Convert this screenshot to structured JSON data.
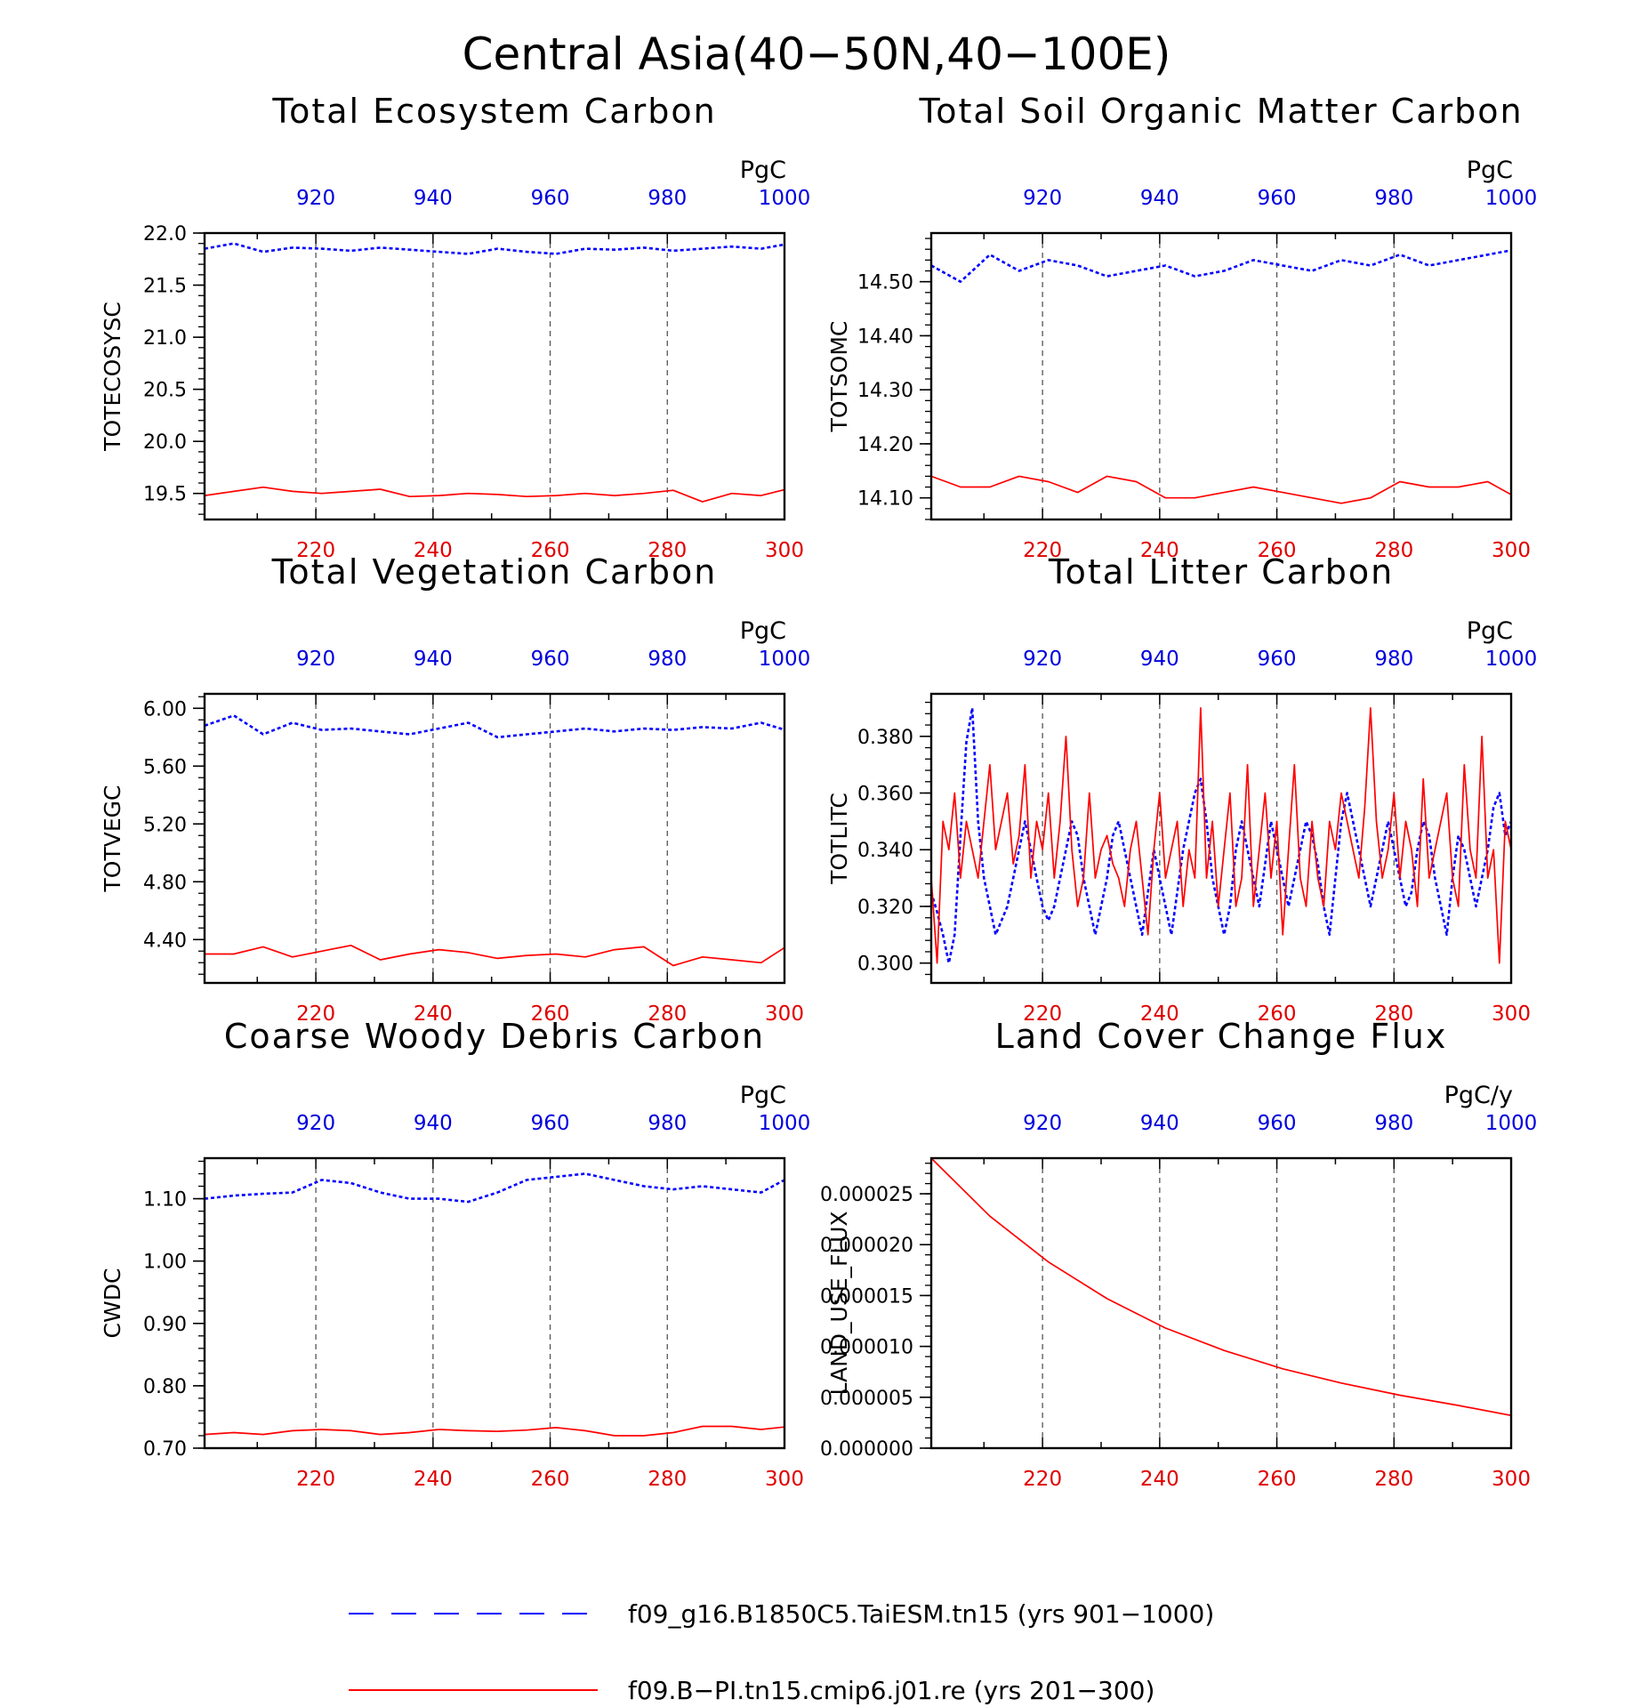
{
  "figure": {
    "title": "Central Asia(40−50N,40−100E)",
    "colors": {
      "case1": "#0000ff",
      "case2": "#ff0000",
      "bottom_ticks": "#e00000",
      "top_ticks": "#0000dd"
    }
  },
  "legend": [
    {
      "label": "f09_g16.B1850C5.TaiESM.tn15 (yrs 901−1000)",
      "color": "#0000ff",
      "style": "dashed"
    },
    {
      "label": "f09.B−PI.tn15.cmip6.j01.re (yrs 201−300)",
      "color": "#ff0000",
      "style": "solid"
    }
  ],
  "chart_data": [
    {
      "type": "line",
      "title": "Total Ecosystem Carbon",
      "ylabel": "TOTECOSYSC",
      "unit": "PgC",
      "x_bottom": {
        "range": [
          201,
          300
        ],
        "ticks": [
          220,
          240,
          260,
          280,
          300
        ]
      },
      "x_top": {
        "range": [
          901,
          1000
        ],
        "ticks": [
          920,
          940,
          960,
          980,
          1000
        ]
      },
      "ylim": [
        19.25,
        22.0
      ],
      "yticks": [
        19.5,
        20.0,
        20.5,
        21.0,
        21.5,
        22.0
      ],
      "ytick_decimals": 1,
      "yminor": 0.1,
      "series": [
        {
          "name": "f09_g16.B1850C5.TaiESM.tn15 (yrs 901−1000)",
          "axis": "top",
          "style": "dashed",
          "x0": 901,
          "step": 5,
          "values": [
            21.85,
            21.9,
            21.82,
            21.86,
            21.85,
            21.83,
            21.86,
            21.84,
            21.82,
            21.8,
            21.85,
            21.82,
            21.8,
            21.85,
            21.84,
            21.86,
            21.83,
            21.85,
            21.87,
            21.85,
            21.9
          ]
        },
        {
          "name": "f09.B−PI.tn15.cmip6.j01.re (yrs 201−300)",
          "axis": "bottom",
          "style": "solid",
          "x0": 201,
          "step": 5,
          "values": [
            19.48,
            19.52,
            19.56,
            19.52,
            19.5,
            19.52,
            19.54,
            19.47,
            19.48,
            19.5,
            19.49,
            19.47,
            19.48,
            19.5,
            19.48,
            19.5,
            19.53,
            19.42,
            19.5,
            19.48,
            19.55
          ]
        }
      ]
    },
    {
      "type": "line",
      "title": "Total Soil Organic Matter Carbon",
      "ylabel": "TOTSOMC",
      "unit": "PgC",
      "x_bottom": {
        "range": [
          201,
          300
        ],
        "ticks": [
          220,
          240,
          260,
          280,
          300
        ]
      },
      "x_top": {
        "range": [
          901,
          1000
        ],
        "ticks": [
          920,
          940,
          960,
          980,
          1000
        ]
      },
      "ylim": [
        14.06,
        14.59
      ],
      "yticks": [
        14.1,
        14.2,
        14.3,
        14.4,
        14.5
      ],
      "ytick_decimals": 2,
      "yminor": 0.02,
      "series": [
        {
          "name": "f09_g16.B1850C5.TaiESM.tn15 (yrs 901−1000)",
          "axis": "top",
          "style": "dashed",
          "x0": 901,
          "step": 5,
          "values": [
            14.53,
            14.5,
            14.55,
            14.52,
            14.54,
            14.53,
            14.51,
            14.52,
            14.53,
            14.51,
            14.52,
            14.54,
            14.53,
            14.52,
            14.54,
            14.53,
            14.55,
            14.53,
            14.54,
            14.55,
            14.56
          ]
        },
        {
          "name": "f09.B−PI.tn15.cmip6.j01.re (yrs 201−300)",
          "axis": "bottom",
          "style": "solid",
          "x0": 201,
          "step": 5,
          "values": [
            14.14,
            14.12,
            14.12,
            14.14,
            14.13,
            14.11,
            14.14,
            14.13,
            14.1,
            14.1,
            14.11,
            14.12,
            14.11,
            14.1,
            14.09,
            14.1,
            14.13,
            14.12,
            14.12,
            14.13,
            14.1
          ]
        }
      ]
    },
    {
      "type": "line",
      "title": "Total Vegetation Carbon",
      "ylabel": "TOTVEGC",
      "unit": "PgC",
      "x_bottom": {
        "range": [
          201,
          300
        ],
        "ticks": [
          220,
          240,
          260,
          280,
          300
        ]
      },
      "x_top": {
        "range": [
          901,
          1000
        ],
        "ticks": [
          920,
          940,
          960,
          980,
          1000
        ]
      },
      "ylim": [
        4.1,
        6.1
      ],
      "yticks": [
        4.4,
        4.8,
        5.2,
        5.6,
        6.0
      ],
      "ytick_decimals": 2,
      "yminor": 0.08,
      "series": [
        {
          "name": "f09_g16.B1850C5.TaiESM.tn15 (yrs 901−1000)",
          "axis": "top",
          "style": "dashed",
          "x0": 901,
          "step": 5,
          "values": [
            5.88,
            5.95,
            5.82,
            5.9,
            5.85,
            5.86,
            5.84,
            5.82,
            5.86,
            5.9,
            5.8,
            5.82,
            5.84,
            5.86,
            5.84,
            5.86,
            5.85,
            5.87,
            5.86,
            5.9,
            5.84
          ]
        },
        {
          "name": "f09.B−PI.tn15.cmip6.j01.re (yrs 201−300)",
          "axis": "bottom",
          "style": "solid",
          "x0": 201,
          "step": 5,
          "values": [
            4.3,
            4.3,
            4.35,
            4.28,
            4.32,
            4.36,
            4.26,
            4.3,
            4.33,
            4.31,
            4.27,
            4.29,
            4.3,
            4.28,
            4.33,
            4.35,
            4.22,
            4.28,
            4.26,
            4.24,
            4.37
          ]
        }
      ]
    },
    {
      "type": "line",
      "title": "Total Litter Carbon",
      "ylabel": "TOTLITC",
      "unit": "PgC",
      "x_bottom": {
        "range": [
          201,
          300
        ],
        "ticks": [
          220,
          240,
          260,
          280,
          300
        ]
      },
      "x_top": {
        "range": [
          901,
          1000
        ],
        "ticks": [
          920,
          940,
          960,
          980,
          1000
        ]
      },
      "ylim": [
        0.293,
        0.395
      ],
      "yticks": [
        0.3,
        0.32,
        0.34,
        0.36,
        0.38
      ],
      "ytick_decimals": 3,
      "yminor": 0.004,
      "series": [
        {
          "name": "f09_g16.B1850C5.TaiESM.tn15 (yrs 901−1000)",
          "axis": "top",
          "style": "dashed",
          "x0": 901,
          "step": 1,
          "values": [
            0.325,
            0.318,
            0.31,
            0.3,
            0.31,
            0.345,
            0.378,
            0.39,
            0.35,
            0.33,
            0.32,
            0.31,
            0.315,
            0.32,
            0.33,
            0.34,
            0.35,
            0.34,
            0.33,
            0.32,
            0.315,
            0.32,
            0.33,
            0.34,
            0.35,
            0.345,
            0.33,
            0.32,
            0.31,
            0.32,
            0.33,
            0.345,
            0.35,
            0.34,
            0.33,
            0.32,
            0.31,
            0.325,
            0.34,
            0.33,
            0.32,
            0.31,
            0.325,
            0.34,
            0.35,
            0.36,
            0.365,
            0.35,
            0.33,
            0.32,
            0.31,
            0.32,
            0.34,
            0.35,
            0.34,
            0.33,
            0.32,
            0.335,
            0.35,
            0.34,
            0.33,
            0.32,
            0.33,
            0.34,
            0.35,
            0.345,
            0.335,
            0.32,
            0.31,
            0.33,
            0.35,
            0.36,
            0.35,
            0.34,
            0.33,
            0.32,
            0.33,
            0.34,
            0.35,
            0.34,
            0.33,
            0.32,
            0.325,
            0.34,
            0.35,
            0.345,
            0.33,
            0.32,
            0.31,
            0.33,
            0.345,
            0.34,
            0.33,
            0.32,
            0.33,
            0.34,
            0.355,
            0.36,
            0.345,
            0.35
          ]
        },
        {
          "name": "f09.B−PI.tn15.cmip6.j01.re (yrs 201−300)",
          "axis": "bottom",
          "style": "solid",
          "x0": 201,
          "step": 1,
          "values": [
            0.33,
            0.3,
            0.35,
            0.34,
            0.36,
            0.33,
            0.35,
            0.34,
            0.33,
            0.35,
            0.37,
            0.34,
            0.35,
            0.36,
            0.335,
            0.345,
            0.37,
            0.33,
            0.35,
            0.34,
            0.36,
            0.33,
            0.35,
            0.38,
            0.34,
            0.32,
            0.33,
            0.36,
            0.33,
            0.34,
            0.345,
            0.335,
            0.33,
            0.32,
            0.34,
            0.35,
            0.33,
            0.31,
            0.34,
            0.36,
            0.33,
            0.34,
            0.35,
            0.32,
            0.34,
            0.33,
            0.39,
            0.33,
            0.35,
            0.32,
            0.34,
            0.36,
            0.32,
            0.33,
            0.37,
            0.32,
            0.34,
            0.36,
            0.33,
            0.35,
            0.31,
            0.34,
            0.37,
            0.33,
            0.32,
            0.35,
            0.33,
            0.32,
            0.35,
            0.34,
            0.36,
            0.35,
            0.34,
            0.33,
            0.355,
            0.39,
            0.35,
            0.33,
            0.34,
            0.36,
            0.33,
            0.35,
            0.34,
            0.32,
            0.365,
            0.33,
            0.34,
            0.35,
            0.36,
            0.33,
            0.32,
            0.37,
            0.34,
            0.33,
            0.38,
            0.33,
            0.34,
            0.3,
            0.35,
            0.34
          ]
        }
      ]
    },
    {
      "type": "line",
      "title": "Coarse Woody Debris Carbon",
      "ylabel": "CWDC",
      "unit": "PgC",
      "x_bottom": {
        "range": [
          201,
          300
        ],
        "ticks": [
          220,
          240,
          260,
          280,
          300
        ]
      },
      "x_top": {
        "range": [
          901,
          1000
        ],
        "ticks": [
          920,
          940,
          960,
          980,
          1000
        ]
      },
      "ylim": [
        0.7,
        1.165
      ],
      "yticks": [
        0.7,
        0.8,
        0.9,
        1.0,
        1.1
      ],
      "ytick_decimals": 2,
      "yminor": 0.02,
      "series": [
        {
          "name": "f09_g16.B1850C5.TaiESM.tn15 (yrs 901−1000)",
          "axis": "top",
          "style": "dashed",
          "x0": 901,
          "step": 5,
          "values": [
            1.1,
            1.105,
            1.108,
            1.11,
            1.13,
            1.125,
            1.11,
            1.1,
            1.1,
            1.095,
            1.11,
            1.13,
            1.135,
            1.14,
            1.13,
            1.12,
            1.115,
            1.12,
            1.115,
            1.11,
            1.135
          ]
        },
        {
          "name": "f09.B−PI.tn15.cmip6.j01.re (yrs 201−300)",
          "axis": "bottom",
          "style": "solid",
          "x0": 201,
          "step": 5,
          "values": [
            0.722,
            0.725,
            0.722,
            0.728,
            0.73,
            0.728,
            0.722,
            0.725,
            0.73,
            0.728,
            0.727,
            0.729,
            0.733,
            0.728,
            0.72,
            0.72,
            0.725,
            0.735,
            0.735,
            0.73,
            0.735
          ]
        }
      ]
    },
    {
      "type": "line",
      "title": "Land Cover Change Flux",
      "ylabel": "LAND_USE_FLUX",
      "unit": "PgC/y",
      "x_bottom": {
        "range": [
          201,
          300
        ],
        "ticks": [
          220,
          240,
          260,
          280,
          300
        ]
      },
      "x_top": {
        "range": [
          901,
          1000
        ],
        "ticks": [
          920,
          940,
          960,
          980,
          1000
        ]
      },
      "ylim": [
        0.0,
        2.85e-05
      ],
      "yticks": [
        0.0,
        5e-06,
        1e-05,
        1.5e-05,
        2e-05,
        2.5e-05
      ],
      "ytick_decimals": 6,
      "yminor": 1e-06,
      "series": [
        {
          "name": "f09.B−PI.tn15.cmip6.j01.re (yrs 201−300)",
          "axis": "bottom",
          "style": "solid",
          "x0": 201,
          "step": 10,
          "values": [
            2.85e-05,
            2.28e-05,
            1.83e-05,
            1.47e-05,
            1.18e-05,
            9.6e-06,
            7.8e-06,
            6.4e-06,
            5.2e-06,
            4.2e-06,
            3.1e-06
          ]
        }
      ]
    }
  ]
}
